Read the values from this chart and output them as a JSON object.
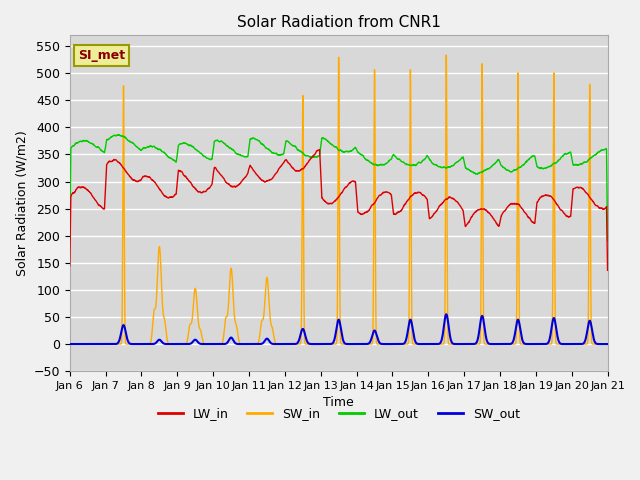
{
  "title": "Solar Radiation from CNR1",
  "xlabel": "Time",
  "ylabel": "Solar Radiation (W/m2)",
  "ylim": [
    -50,
    570
  ],
  "yticks": [
    -50,
    0,
    50,
    100,
    150,
    200,
    250,
    300,
    350,
    400,
    450,
    500,
    550
  ],
  "annotation": "SI_met",
  "fig_bg_color": "#f0f0f0",
  "plot_bg_color": "#d8d8d8",
  "grid_color": "white",
  "colors": {
    "LW_in": "#dd0000",
    "SW_in": "#ffaa00",
    "LW_out": "#00cc00",
    "SW_out": "#0000dd"
  },
  "xtick_labels": [
    "Jan 6",
    "Jan 7",
    "Jan 8",
    "Jan 9",
    "Jan 10",
    "Jan 11",
    "Jan 12",
    "Jan 13",
    "Jan 14",
    "Jan 15",
    "Jan 16",
    "Jan 17",
    "Jan 18",
    "Jan 19",
    "Jan 20",
    "Jan 21"
  ],
  "legend_entries": [
    "LW_in",
    "SW_in",
    "LW_out",
    "SW_out"
  ],
  "n_days": 15,
  "pts_per_day": 240
}
